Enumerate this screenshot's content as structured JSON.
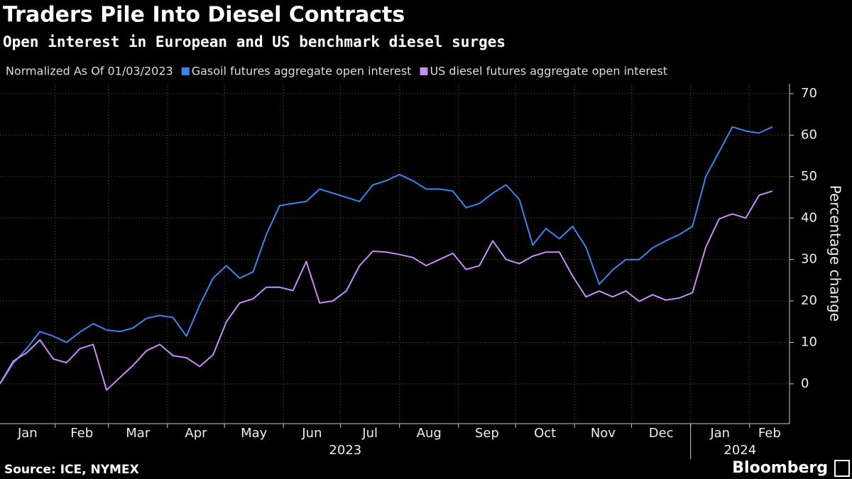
{
  "chart_data": {
    "type": "line",
    "title": "Traders Pile Into Diesel Contracts",
    "subtitle": "Open interest in European and US benchmark diesel surges",
    "legend_note": "Normalized As Of 01/03/2023",
    "y_label": "Percentage change",
    "source": "Source: ICE, NYMEX",
    "brand": "Bloomberg",
    "x": [
      "2023-01-03",
      "2023-01-10",
      "2023-01-17",
      "2023-01-24",
      "2023-01-31",
      "2023-02-07",
      "2023-02-14",
      "2023-02-21",
      "2023-02-28",
      "2023-03-07",
      "2023-03-14",
      "2023-03-21",
      "2023-03-28",
      "2023-04-04",
      "2023-04-11",
      "2023-04-18",
      "2023-04-25",
      "2023-05-02",
      "2023-05-09",
      "2023-05-16",
      "2023-05-23",
      "2023-05-30",
      "2023-06-06",
      "2023-06-13",
      "2023-06-20",
      "2023-06-27",
      "2023-07-04",
      "2023-07-11",
      "2023-07-18",
      "2023-07-25",
      "2023-08-01",
      "2023-08-08",
      "2023-08-15",
      "2023-08-22",
      "2023-08-29",
      "2023-09-05",
      "2023-09-12",
      "2023-09-19",
      "2023-09-26",
      "2023-10-03",
      "2023-10-10",
      "2023-10-17",
      "2023-10-24",
      "2023-10-31",
      "2023-11-07",
      "2023-11-14",
      "2023-11-21",
      "2023-11-28",
      "2023-12-05",
      "2023-12-12",
      "2023-12-19",
      "2023-12-26",
      "2024-01-02",
      "2024-01-09",
      "2024-01-16",
      "2024-01-23",
      "2024-01-30",
      "2024-02-06",
      "2024-02-13"
    ],
    "series": [
      {
        "name": "Gasoil futures aggregate open interest",
        "color": "#3a86f0",
        "values": [
          0,
          5,
          8.5,
          12.6,
          11.5,
          10,
          12.5,
          14.5,
          13,
          12.6,
          13.5,
          15.8,
          16.5,
          16,
          11.5,
          19,
          25.5,
          28.5,
          25.5,
          27,
          36,
          43,
          43.5,
          44,
          47,
          46,
          45,
          44,
          48,
          49,
          50.5,
          49,
          47,
          47,
          46.5,
          42.5,
          43.5,
          46,
          48,
          44.5,
          33.5,
          37.5,
          35,
          38,
          33,
          24,
          27.5,
          30,
          30,
          32.8,
          34.5,
          36,
          38,
          50,
          56,
          62,
          61,
          60.5,
          62
        ]
      },
      {
        "name": "US diesel futures aggregate open interest",
        "color": "#c98cf7",
        "values": [
          0,
          5.5,
          7.5,
          10.6,
          6,
          5.1,
          8.5,
          9.5,
          -1.5,
          1.5,
          4.5,
          8,
          9.5,
          6.8,
          6.3,
          4.2,
          7,
          15,
          19.5,
          20.5,
          23.3,
          23.3,
          22.5,
          29.5,
          19.5,
          20,
          22.4,
          28.5,
          32,
          31.8,
          31.2,
          30.5,
          28.5,
          30,
          31.5,
          27.6,
          28.5,
          34.5,
          30,
          29,
          30.8,
          31.8,
          31.8,
          26,
          21,
          22.4,
          21,
          22.4,
          19.9,
          21.5,
          20.2,
          20.7,
          22,
          33,
          39.8,
          41,
          40,
          45.5,
          46.5
        ]
      }
    ],
    "xlim": [
      "2023-01-03",
      "2024-02-22"
    ],
    "xticks": [
      {
        "value": "2023-01-01",
        "label": "Jan"
      },
      {
        "value": "2023-02-01",
        "label": "Feb"
      },
      {
        "value": "2023-03-01",
        "label": "Mar"
      },
      {
        "value": "2023-04-01",
        "label": "Apr"
      },
      {
        "value": "2023-05-01",
        "label": "May"
      },
      {
        "value": "2023-06-01",
        "label": "Jun"
      },
      {
        "value": "2023-07-01",
        "label": "Jul"
      },
      {
        "value": "2023-08-01",
        "label": "Aug"
      },
      {
        "value": "2023-09-01",
        "label": "Sep"
      },
      {
        "value": "2023-10-01",
        "label": "Oct"
      },
      {
        "value": "2023-11-01",
        "label": "Nov"
      },
      {
        "value": "2023-12-01",
        "label": "Dec"
      },
      {
        "value": "2024-01-01",
        "label": "Jan"
      },
      {
        "value": "2024-02-01",
        "label": "Feb"
      }
    ],
    "xticks_major": [
      {
        "value": "2023-01-01",
        "label": "2023"
      },
      {
        "value": "2024-01-01",
        "label": "2024"
      }
    ],
    "ylim": [
      -9.6,
      72.4
    ],
    "yticks": [
      0,
      10,
      20,
      30,
      40,
      50,
      60,
      70
    ],
    "grid": true
  }
}
